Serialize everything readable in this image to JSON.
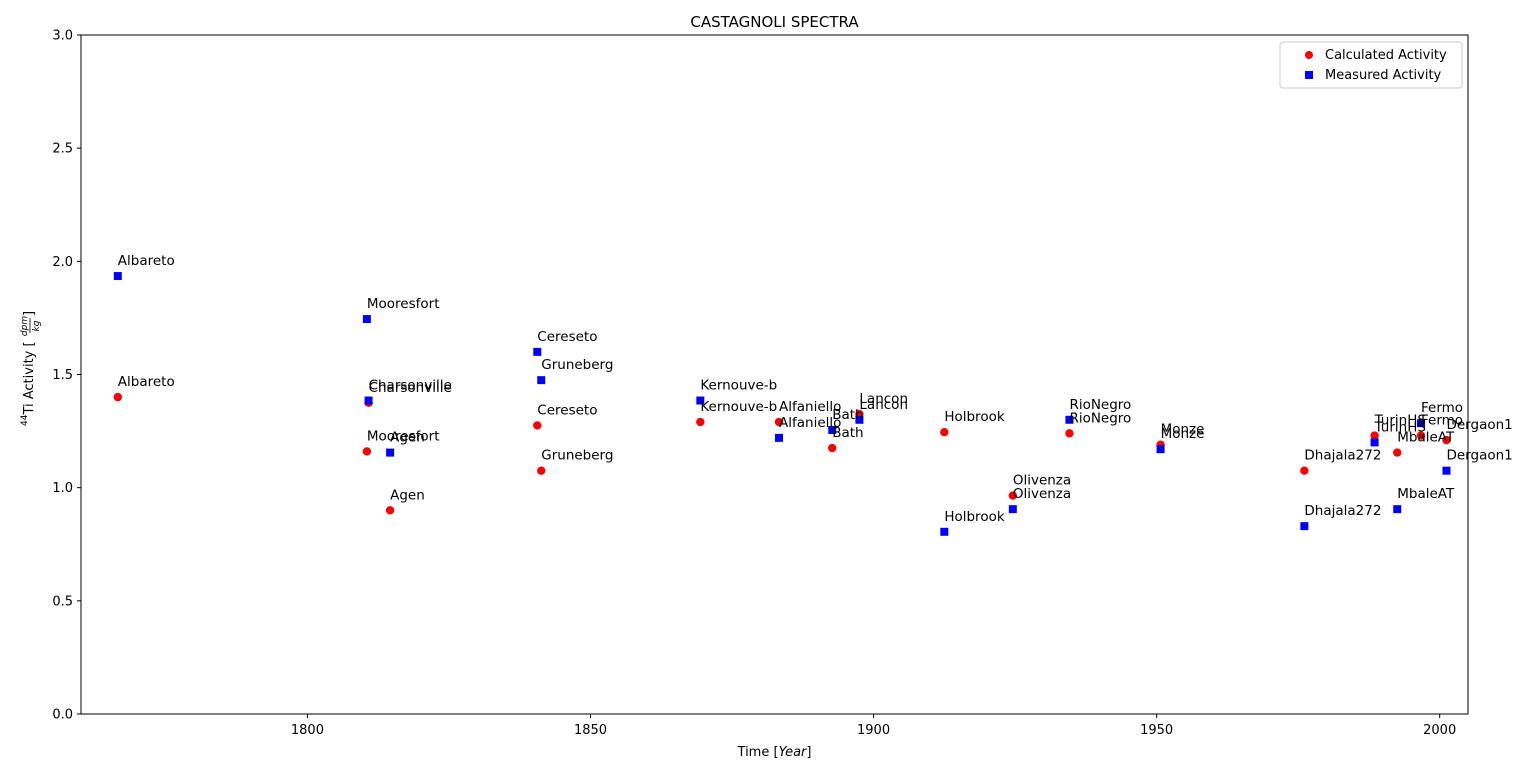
{
  "chart_data": {
    "type": "scatter",
    "title": "CASTAGNOLI SPECTRA",
    "xlabel_prefix": "Time [",
    "xlabel_italic": "Year",
    "xlabel_suffix": "]",
    "ylabel_super": "44",
    "ylabel_main": "Ti Activity [",
    "ylabel_frac_num": "dpm",
    "ylabel_frac_den": "kg",
    "ylabel_close": "]",
    "xlim": [
      1760,
      2005
    ],
    "ylim": [
      0.0,
      3.0
    ],
    "xticks": [
      1800,
      1850,
      1900,
      1950,
      2000
    ],
    "xtick_labels": [
      "1800",
      "1850",
      "1900",
      "1950",
      "2000"
    ],
    "yticks": [
      0.0,
      0.5,
      1.0,
      1.5,
      2.0,
      2.5,
      3.0
    ],
    "ytick_labels": [
      "0.0",
      "0.5",
      "1.0",
      "1.5",
      "2.0",
      "2.5",
      "3.0"
    ],
    "grid": false,
    "legend_position": "top-right",
    "series": [
      {
        "name": "Calculated Activity",
        "marker": "circle",
        "color": "#ff0000",
        "points": [
          {
            "label": "Albareto",
            "x": 1766.5,
            "y": 1.4
          },
          {
            "label": "Mooresfort",
            "x": 1810.5,
            "y": 1.16
          },
          {
            "label": "Charsonville",
            "x": 1810.8,
            "y": 1.375
          },
          {
            "label": "Agen",
            "x": 1814.6,
            "y": 0.9
          },
          {
            "label": "Cereseto",
            "x": 1840.6,
            "y": 1.275
          },
          {
            "label": "Gruneberg",
            "x": 1841.3,
            "y": 1.075
          },
          {
            "label": "Kernouve-b",
            "x": 1869.4,
            "y": 1.29
          },
          {
            "label": "Alfaniello",
            "x": 1883.3,
            "y": 1.29
          },
          {
            "label": "Bath",
            "x": 1892.7,
            "y": 1.175
          },
          {
            "label": "Lancon",
            "x": 1897.5,
            "y": 1.325
          },
          {
            "label": "Holbrook",
            "x": 1912.5,
            "y": 1.245
          },
          {
            "label": "Olivenza",
            "x": 1924.6,
            "y": 0.965
          },
          {
            "label": "RioNegro",
            "x": 1934.6,
            "y": 1.24
          },
          {
            "label": "Monze",
            "x": 1950.7,
            "y": 1.19
          },
          {
            "label": "Dhajala272",
            "x": 1976.1,
            "y": 1.075
          },
          {
            "label": "TurinHS",
            "x": 1988.5,
            "y": 1.23
          },
          {
            "label": "MbaleAT",
            "x": 1992.5,
            "y": 1.155
          },
          {
            "label": "Fermo",
            "x": 1996.7,
            "y": 1.23
          },
          {
            "label": "Dergaon1",
            "x": 2001.2,
            "y": 1.21
          }
        ]
      },
      {
        "name": "Measured Activity",
        "marker": "square",
        "color": "#0000ff",
        "points": [
          {
            "label": "Albareto",
            "x": 1766.5,
            "y": 1.935
          },
          {
            "label": "Mooresfort",
            "x": 1810.5,
            "y": 1.745
          },
          {
            "label": "Charsonville",
            "x": 1810.8,
            "y": 1.385
          },
          {
            "label": "Agen",
            "x": 1814.6,
            "y": 1.155
          },
          {
            "label": "Cereseto",
            "x": 1840.6,
            "y": 1.6
          },
          {
            "label": "Gruneberg",
            "x": 1841.3,
            "y": 1.475
          },
          {
            "label": "Kernouve-b",
            "x": 1869.4,
            "y": 1.385
          },
          {
            "label": "Alfaniello",
            "x": 1883.3,
            "y": 1.22
          },
          {
            "label": "Bath",
            "x": 1892.7,
            "y": 1.255
          },
          {
            "label": "Lancon",
            "x": 1897.5,
            "y": 1.3
          },
          {
            "label": "Holbrook",
            "x": 1912.5,
            "y": 0.805
          },
          {
            "label": "Olivenza",
            "x": 1924.6,
            "y": 0.905
          },
          {
            "label": "RioNegro",
            "x": 1934.6,
            "y": 1.3
          },
          {
            "label": "Monze",
            "x": 1950.7,
            "y": 1.17
          },
          {
            "label": "Dhajala272",
            "x": 1976.1,
            "y": 0.83
          },
          {
            "label": "TurinHS",
            "x": 1988.5,
            "y": 1.2
          },
          {
            "label": "MbaleAT",
            "x": 1992.5,
            "y": 0.905
          },
          {
            "label": "Fermo",
            "x": 1996.7,
            "y": 1.285
          },
          {
            "label": "Dergaon1",
            "x": 2001.2,
            "y": 1.075
          }
        ]
      }
    ]
  }
}
